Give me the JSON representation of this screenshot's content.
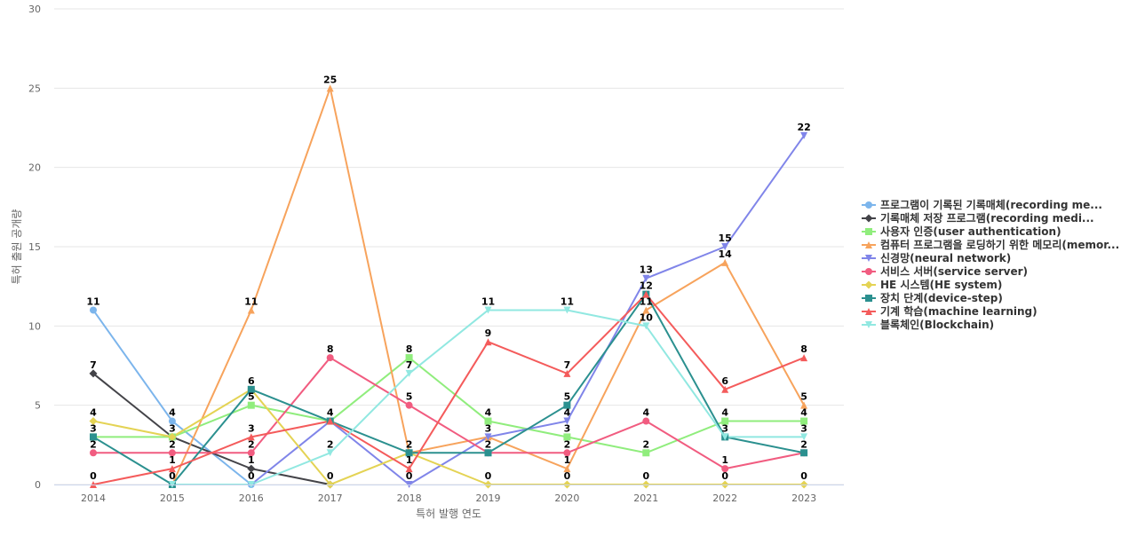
{
  "chart_data": {
    "type": "line",
    "xlabel": "특허 발행 연도",
    "ylabel": "특허 출원 공개량",
    "x": [
      "2014",
      "2015",
      "2016",
      "2017",
      "2018",
      "2019",
      "2020",
      "2021",
      "2022",
      "2023"
    ],
    "ylim": [
      0,
      30
    ],
    "yticks": [
      "0",
      "5",
      "10",
      "15",
      "20",
      "25",
      "30"
    ],
    "grid": true,
    "legend_position": "right",
    "series": [
      {
        "name": "프로그램이 기록된 기록매체(recording me...",
        "color": "#7cb5ec",
        "marker": "circle",
        "values": [
          11,
          4,
          0,
          null,
          null,
          null,
          null,
          null,
          null,
          null
        ]
      },
      {
        "name": "기록매체 저장 프로그램(recording medi...",
        "color": "#434348",
        "marker": "diamond",
        "values": [
          7,
          3,
          1,
          0,
          null,
          null,
          null,
          null,
          null,
          null
        ]
      },
      {
        "name": "사용자 인증(user authentication)",
        "color": "#90ed7d",
        "marker": "square",
        "values": [
          3,
          3,
          5,
          4,
          8,
          4,
          3,
          2,
          4,
          4
        ]
      },
      {
        "name": "컴퓨터 프로그램을 로딩하기 위한 메모리(memor...",
        "color": "#f7a35c",
        "marker": "triangle",
        "values": [
          null,
          0,
          11,
          25,
          2,
          3,
          1,
          11,
          14,
          5
        ]
      },
      {
        "name": "신경망(neural network)",
        "color": "#8085e9",
        "marker": "triangle-down",
        "values": [
          null,
          null,
          0,
          4,
          0,
          3,
          4,
          13,
          15,
          22
        ]
      },
      {
        "name": "서비스 서버(service server)",
        "color": "#f15c80",
        "marker": "circle",
        "values": [
          2,
          2,
          2,
          8,
          5,
          2,
          2,
          4,
          1,
          2
        ]
      },
      {
        "name": "HE 시스템(HE system)",
        "color": "#e4d354",
        "marker": "diamond",
        "values": [
          4,
          3,
          6,
          0,
          2,
          0,
          0,
          0,
          0,
          0
        ]
      },
      {
        "name": "장치 단계(device-step)",
        "color": "#2b908f",
        "marker": "square",
        "values": [
          3,
          0,
          6,
          4,
          2,
          2,
          5,
          12,
          3,
          2
        ]
      },
      {
        "name": "기계 학습(machine learning)",
        "color": "#f45b5b",
        "marker": "triangle",
        "values": [
          0,
          1,
          3,
          4,
          1,
          9,
          7,
          12,
          6,
          8
        ]
      },
      {
        "name": "블록체인(Blockchain)",
        "color": "#91e8e1",
        "marker": "triangle-down",
        "values": [
          null,
          0,
          0,
          2,
          7,
          11,
          11,
          10,
          3,
          3
        ]
      }
    ],
    "data_labels": [
      {
        "x": "2014",
        "text": "11",
        "v": 11
      },
      {
        "x": "2014",
        "text": "7",
        "v": 7
      },
      {
        "x": "2014",
        "text": "4",
        "v": 4
      },
      {
        "x": "2014",
        "text": "3",
        "v": 3
      },
      {
        "x": "2014",
        "text": "2",
        "v": 2
      },
      {
        "x": "2014",
        "text": "0",
        "v": 0
      },
      {
        "x": "2015",
        "text": "4",
        "v": 4
      },
      {
        "x": "2015",
        "text": "3",
        "v": 3
      },
      {
        "x": "2015",
        "text": "2",
        "v": 2
      },
      {
        "x": "2015",
        "text": "1",
        "v": 1
      },
      {
        "x": "2015",
        "text": "0",
        "v": 0
      },
      {
        "x": "2016",
        "text": "11",
        "v": 11
      },
      {
        "x": "2016",
        "text": "6",
        "v": 6
      },
      {
        "x": "2016",
        "text": "5",
        "v": 5
      },
      {
        "x": "2016",
        "text": "3",
        "v": 3
      },
      {
        "x": "2016",
        "text": "2",
        "v": 2
      },
      {
        "x": "2016",
        "text": "1",
        "v": 1
      },
      {
        "x": "2016",
        "text": "0",
        "v": 0
      },
      {
        "x": "2017",
        "text": "25",
        "v": 25
      },
      {
        "x": "2017",
        "text": "8",
        "v": 8
      },
      {
        "x": "2017",
        "text": "4",
        "v": 4
      },
      {
        "x": "2017",
        "text": "2",
        "v": 2
      },
      {
        "x": "2017",
        "text": "0",
        "v": 0
      },
      {
        "x": "2018",
        "text": "8",
        "v": 8
      },
      {
        "x": "2018",
        "text": "7",
        "v": 7
      },
      {
        "x": "2018",
        "text": "5",
        "v": 5
      },
      {
        "x": "2018",
        "text": "2",
        "v": 2
      },
      {
        "x": "2018",
        "text": "1",
        "v": 1
      },
      {
        "x": "2018",
        "text": "0",
        "v": 0
      },
      {
        "x": "2019",
        "text": "11",
        "v": 11
      },
      {
        "x": "2019",
        "text": "9",
        "v": 9
      },
      {
        "x": "2019",
        "text": "4",
        "v": 4
      },
      {
        "x": "2019",
        "text": "3",
        "v": 3
      },
      {
        "x": "2019",
        "text": "2",
        "v": 2
      },
      {
        "x": "2019",
        "text": "0",
        "v": 0
      },
      {
        "x": "2020",
        "text": "11",
        "v": 11
      },
      {
        "x": "2020",
        "text": "7",
        "v": 7
      },
      {
        "x": "2020",
        "text": "5",
        "v": 5
      },
      {
        "x": "2020",
        "text": "4",
        "v": 4
      },
      {
        "x": "2020",
        "text": "3",
        "v": 3
      },
      {
        "x": "2020",
        "text": "2",
        "v": 2
      },
      {
        "x": "2020",
        "text": "1",
        "v": 1
      },
      {
        "x": "2020",
        "text": "0",
        "v": 0
      },
      {
        "x": "2021",
        "text": "13",
        "v": 13
      },
      {
        "x": "2021",
        "text": "12",
        "v": 12
      },
      {
        "x": "2021",
        "text": "11",
        "v": 11
      },
      {
        "x": "2021",
        "text": "10",
        "v": 10
      },
      {
        "x": "2021",
        "text": "4",
        "v": 4
      },
      {
        "x": "2021",
        "text": "2",
        "v": 2
      },
      {
        "x": "2021",
        "text": "0",
        "v": 0
      },
      {
        "x": "2022",
        "text": "15",
        "v": 15
      },
      {
        "x": "2022",
        "text": "14",
        "v": 14
      },
      {
        "x": "2022",
        "text": "6",
        "v": 6
      },
      {
        "x": "2022",
        "text": "4",
        "v": 4
      },
      {
        "x": "2022",
        "text": "3",
        "v": 3
      },
      {
        "x": "2022",
        "text": "1",
        "v": 1
      },
      {
        "x": "2022",
        "text": "0",
        "v": 0
      },
      {
        "x": "2023",
        "text": "22",
        "v": 22
      },
      {
        "x": "2023",
        "text": "8",
        "v": 8
      },
      {
        "x": "2023",
        "text": "5",
        "v": 5
      },
      {
        "x": "2023",
        "text": "4",
        "v": 4
      },
      {
        "x": "2023",
        "text": "3",
        "v": 3
      },
      {
        "x": "2023",
        "text": "2",
        "v": 2
      },
      {
        "x": "2023",
        "text": "0",
        "v": 0
      }
    ]
  }
}
